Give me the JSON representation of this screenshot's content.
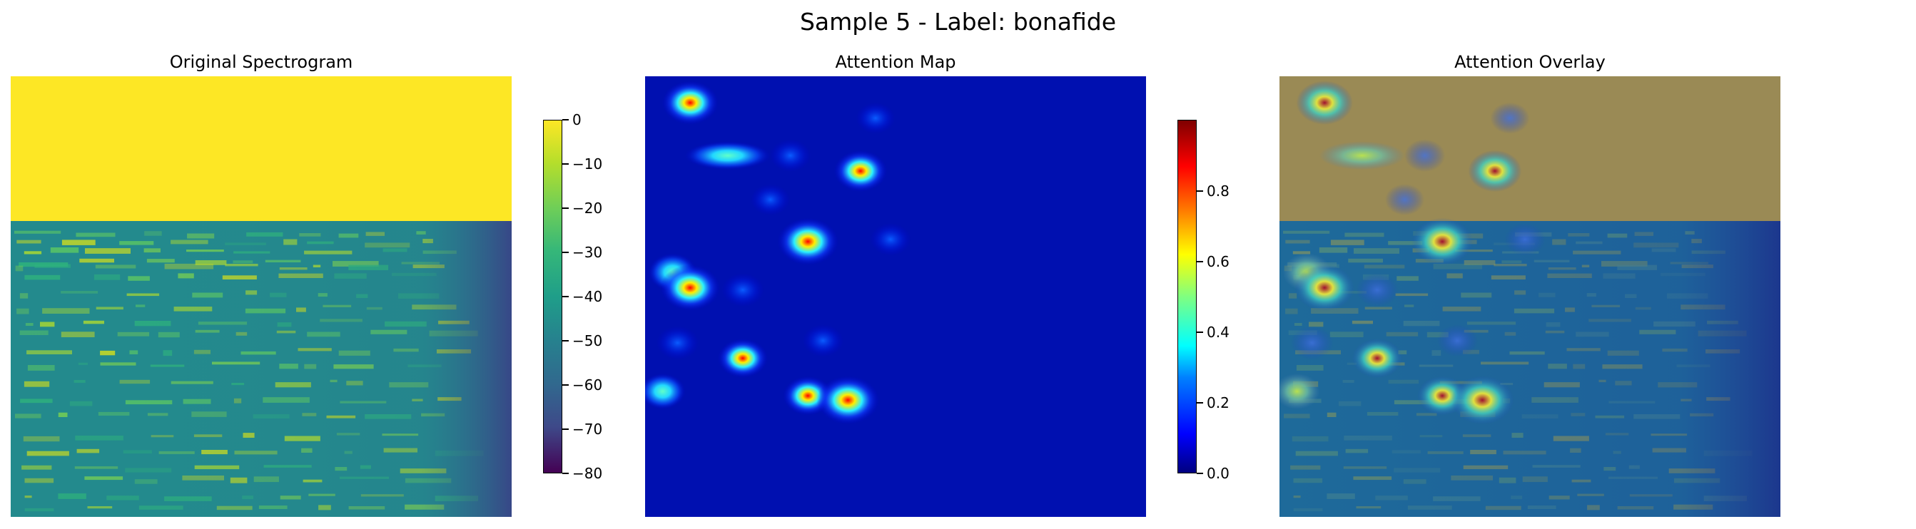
{
  "figure": {
    "suptitle": "Sample 5 - Label: bonafide"
  },
  "panels": [
    {
      "title": "Original Spectrogram"
    },
    {
      "title": "Attention Map"
    },
    {
      "title": "Attention Overlay"
    }
  ],
  "colors": {
    "viridis_top": "#fde725",
    "viridis_mid": "#21918c",
    "viridis_low": "#440154",
    "jet_low": "#00007f",
    "jet_high": "#7f0000",
    "overlay_top": "#9a8a55"
  },
  "chart_data": [
    {
      "type": "heatmap",
      "title": "Original Spectrogram",
      "colormap": "viridis",
      "colorbar": {
        "min": -80,
        "max": 0,
        "ticks": [
          0,
          -10,
          -20,
          -30,
          -40,
          -50,
          -60,
          -70,
          -80
        ],
        "tick_labels": [
          "0",
          "−10",
          "−20",
          "−30",
          "−40",
          "−50",
          "−60",
          "−70",
          "−80"
        ]
      },
      "axes": "off",
      "description_values": {
        "top_band_value": 0,
        "typical_value": -40,
        "right_edge_value": -75
      }
    },
    {
      "type": "heatmap",
      "title": "Attention Map",
      "colormap": "jet",
      "colorbar": {
        "min": 0,
        "max": 1,
        "ticks": [
          0.0,
          0.2,
          0.4,
          0.6,
          0.8
        ],
        "tick_labels": [
          "0.0",
          "0.2",
          "0.4",
          "0.6",
          "0.8"
        ]
      },
      "axes": "off",
      "x_range": [
        0,
        1
      ],
      "y_range": [
        0,
        1
      ],
      "hotspots": [
        {
          "x": 0.18,
          "y": 0.12,
          "value": 0.8
        },
        {
          "x": 0.33,
          "y": 0.36,
          "value": 0.45
        },
        {
          "x": 0.58,
          "y": 0.36,
          "value": 0.3
        },
        {
          "x": 0.86,
          "y": 0.43,
          "value": 0.7
        },
        {
          "x": 0.92,
          "y": 0.19,
          "value": 0.25
        },
        {
          "x": 0.5,
          "y": 0.56,
          "value": 0.25
        },
        {
          "x": 0.65,
          "y": 0.75,
          "value": 0.95
        },
        {
          "x": 0.98,
          "y": 0.74,
          "value": 0.3
        },
        {
          "x": 0.11,
          "y": 0.89,
          "value": 0.55
        },
        {
          "x": 0.18,
          "y": 0.96,
          "value": 0.9
        },
        {
          "x": 0.39,
          "y": 0.97,
          "value": 0.35
        },
        {
          "x": 0.13,
          "y": 1.21,
          "value": 0.35
        },
        {
          "x": 0.39,
          "y": 1.28,
          "value": 0.6
        },
        {
          "x": 0.71,
          "y": 1.2,
          "value": 0.3
        },
        {
          "x": 0.07,
          "y": 1.43,
          "value": 0.45
        },
        {
          "x": 0.65,
          "y": 1.45,
          "value": 0.6
        },
        {
          "x": 0.81,
          "y": 1.47,
          "value": 1.0
        }
      ]
    },
    {
      "type": "heatmap",
      "title": "Attention Overlay",
      "description": "Attention map blended over the spectrogram",
      "axes": "off"
    }
  ]
}
